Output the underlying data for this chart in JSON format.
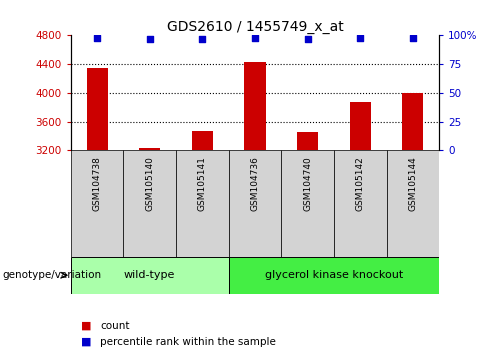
{
  "title": "GDS2610 / 1455749_x_at",
  "samples": [
    "GSM104738",
    "GSM105140",
    "GSM105141",
    "GSM104736",
    "GSM104740",
    "GSM105142",
    "GSM105144"
  ],
  "counts": [
    4350,
    3230,
    3470,
    4430,
    3460,
    3870,
    4000
  ],
  "percentile_ranks": [
    98,
    97,
    97,
    98,
    97,
    98,
    98
  ],
  "ylim_left": [
    3200,
    4800
  ],
  "ylim_right": [
    0,
    100
  ],
  "yticks_left": [
    3200,
    3600,
    4000,
    4400,
    4800
  ],
  "yticks_right": [
    0,
    25,
    50,
    75,
    100
  ],
  "ytick_labels_right": [
    "0",
    "25",
    "50",
    "75",
    "100%"
  ],
  "bar_color": "#CC0000",
  "dot_color": "#0000CC",
  "bar_width": 0.4,
  "sample_bg_color": "#D3D3D3",
  "legend_count_color": "#CC0000",
  "legend_pct_color": "#0000CC",
  "genotype_label": "genotype/variation",
  "group1_label": "wild-type",
  "group1_color": "#AAFFAA",
  "group2_label": "glycerol kinase knockout",
  "group2_color": "#44EE44",
  "grid_yticks": [
    4400,
    4000,
    3600
  ],
  "wt_count": 3,
  "gk_count": 4
}
